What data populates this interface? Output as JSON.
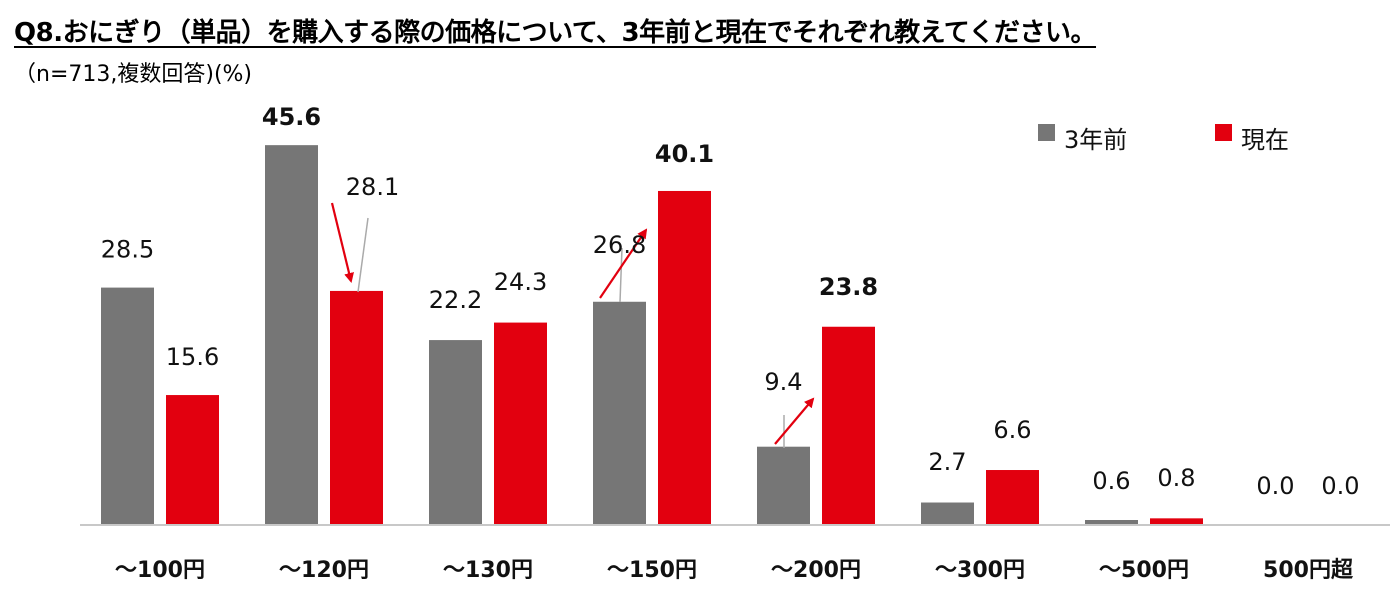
{
  "header": {
    "title": "Q8.おにぎり（単品）を購入する際の価格について、3年前と現在でそれぞれ教えてください。",
    "subtitle": "（n=713,複数回答)(%)"
  },
  "colors": {
    "before": "#767676",
    "now": "#e2000f",
    "arrow": "#e2000f",
    "axis": "#c8c8c8"
  },
  "chart_data": {
    "type": "bar",
    "categories": [
      "～100円",
      "～120円",
      "～130円",
      "～150円",
      "～200円",
      "～300円",
      "～500円",
      "500円超"
    ],
    "series": [
      {
        "name": "3年前",
        "values": [
          28.5,
          45.6,
          22.2,
          26.8,
          9.4,
          2.7,
          0.6,
          0.0
        ],
        "labels": [
          "28.5",
          "45.6",
          "22.2",
          "26.8",
          "9.4",
          "2.7",
          "0.6",
          "0.0"
        ],
        "bold": [
          false,
          true,
          false,
          false,
          false,
          false,
          false,
          false
        ]
      },
      {
        "name": "現在",
        "values": [
          15.6,
          28.1,
          24.3,
          40.1,
          23.8,
          6.6,
          0.8,
          0.0
        ],
        "labels": [
          "15.6",
          "28.1",
          "24.3",
          "40.1",
          "23.8",
          "6.6",
          "0.8",
          "0.0"
        ],
        "bold": [
          false,
          false,
          false,
          true,
          true,
          false,
          false,
          false
        ]
      }
    ],
    "ylim": [
      0,
      46
    ],
    "grid": false,
    "legend_position": "top-right",
    "annotations": [
      "arrow from 3年前 to 現在 at ～120円 (down)",
      "arrow from 3年前 to 現在 at ～150円 (up)",
      "arrow from 3年前 to 現在 at ～200円 (up)"
    ]
  }
}
